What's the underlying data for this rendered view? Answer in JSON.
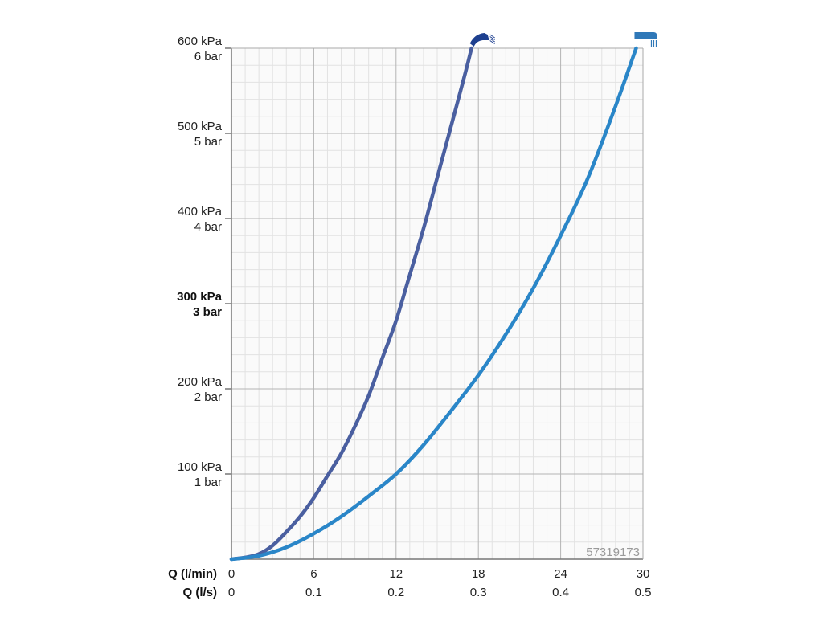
{
  "chart_data": {
    "type": "line",
    "xlim": [
      0,
      30
    ],
    "ylim": [
      0,
      600
    ],
    "grid": true,
    "x_axis_rows": [
      {
        "name": "Q (l/min)",
        "ticks": [
          "0",
          "6",
          "12",
          "18",
          "24",
          "30"
        ]
      },
      {
        "name": "Q (l/s)",
        "ticks": [
          "0",
          "0.1",
          "0.2",
          "0.3",
          "0.4",
          "0.5"
        ]
      }
    ],
    "y_ticks": [
      {
        "value": 100,
        "line1": "100 kPa",
        "line2": "1 bar",
        "bold": false
      },
      {
        "value": 200,
        "line1": "200 kPa",
        "line2": "2 bar",
        "bold": false
      },
      {
        "value": 300,
        "line1": "300 kPa",
        "line2": "3 bar",
        "bold": true
      },
      {
        "value": 400,
        "line1": "400 kPa",
        "line2": "4 bar",
        "bold": false
      },
      {
        "value": 500,
        "line1": "500 kPa",
        "line2": "5 bar",
        "bold": false
      },
      {
        "value": 600,
        "line1": "600 kPa",
        "line2": "6 bar",
        "bold": false
      }
    ],
    "series": [
      {
        "icon": "rain-shower-icon",
        "color": "#4a5fa0",
        "points": [
          [
            0,
            0
          ],
          [
            1,
            2
          ],
          [
            2,
            6
          ],
          [
            3,
            16
          ],
          [
            4,
            32
          ],
          [
            5,
            50
          ],
          [
            6,
            72
          ],
          [
            7,
            98
          ],
          [
            8,
            124
          ],
          [
            9,
            156
          ],
          [
            10,
            192
          ],
          [
            11,
            236
          ],
          [
            12,
            280
          ],
          [
            13,
            334
          ],
          [
            14,
            388
          ],
          [
            15,
            448
          ],
          [
            16,
            508
          ],
          [
            17,
            568
          ],
          [
            17.5,
            600
          ]
        ]
      },
      {
        "icon": "straight-jet-icon",
        "color": "#2a86c8",
        "points": [
          [
            0,
            0
          ],
          [
            2,
            4
          ],
          [
            4,
            14
          ],
          [
            6,
            30
          ],
          [
            8,
            50
          ],
          [
            10,
            74
          ],
          [
            12,
            100
          ],
          [
            14,
            134
          ],
          [
            16,
            174
          ],
          [
            18,
            216
          ],
          [
            20,
            264
          ],
          [
            22,
            318
          ],
          [
            24,
            380
          ],
          [
            26,
            448
          ],
          [
            28,
            532
          ],
          [
            29.5,
            600
          ]
        ]
      }
    ]
  },
  "watermark": "57319173"
}
